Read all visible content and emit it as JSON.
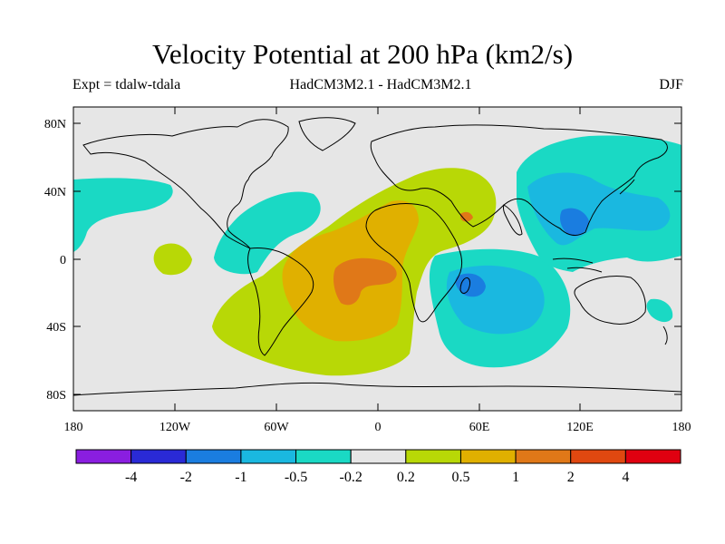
{
  "title": "Velocity Potential at 200 hPa (km2/s)",
  "subtitle_left": "Expt = tdalw-tdala",
  "subtitle_center": "HadCM3M2.1 - HadCM3M2.1",
  "subtitle_right": "DJF",
  "axes": {
    "y_ticks": [
      "80N",
      "40N",
      "0",
      "40S",
      "80S"
    ],
    "x_ticks": [
      "180",
      "120W",
      "60W",
      "0",
      "60E",
      "120E",
      "180"
    ]
  },
  "colorbar": {
    "colors": [
      "#8a1ee0",
      "#2a2ad6",
      "#1a7de0",
      "#1ab8e0",
      "#1ad9c4",
      "#e6e6e6",
      "#b8d806",
      "#e0b000",
      "#e07818",
      "#e04810",
      "#e00010"
    ],
    "labels": [
      "-4",
      "-2",
      "-1",
      "-0.5",
      "-0.2",
      "0.2",
      "0.5",
      "1",
      "2",
      "4"
    ]
  },
  "colors": {
    "ocean_background": "#e6e6e6",
    "positive_weak": "#b8d806",
    "positive_mid": "#e0b000",
    "positive_strong": "#e07818",
    "negative_weak": "#1ad9c4",
    "negative_mid": "#1ab8e0",
    "negative_strong": "#1a7de0"
  }
}
